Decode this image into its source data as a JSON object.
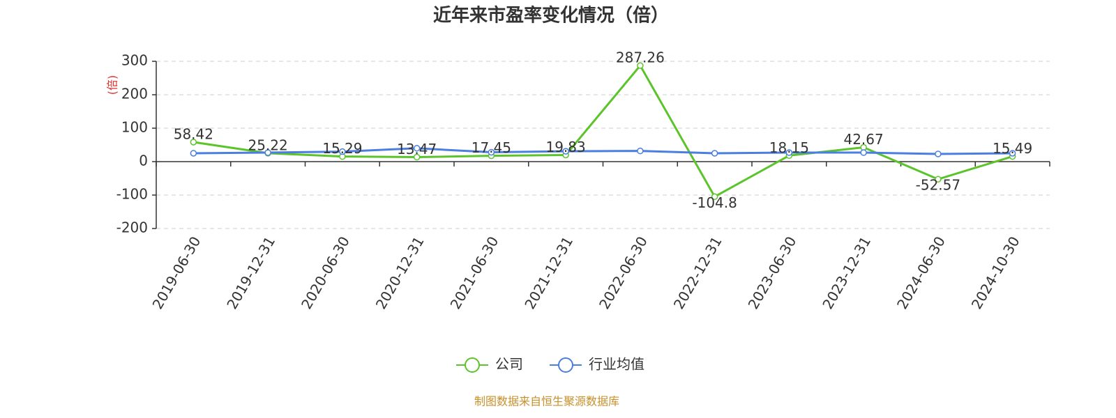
{
  "chart_data": {
    "type": "line",
    "title": "近年来市盈率变化情况（倍）",
    "y_label": "(倍)",
    "source": "制图数据来自恒生聚源数据库",
    "categories": [
      "2019-06-30",
      "2019-12-31",
      "2020-06-30",
      "2020-12-31",
      "2021-06-30",
      "2021-12-31",
      "2022-06-30",
      "2022-12-31",
      "2023-06-30",
      "2023-12-31",
      "2024-06-30",
      "2024-10-30"
    ],
    "series": [
      {
        "name": "公司",
        "color": "#5cc42b",
        "values": [
          58.42,
          25.22,
          15.29,
          13.47,
          17.45,
          19.83,
          287.26,
          -104.8,
          18.15,
          42.67,
          -52.57,
          15.49
        ]
      },
      {
        "name": "行业均值",
        "color": "#4a7ee0",
        "values": [
          25,
          27,
          30,
          40,
          28,
          31,
          32,
          25,
          27,
          27,
          23,
          25
        ]
      }
    ],
    "ylim": [
      -200,
      300
    ],
    "yticks": [
      -200,
      -100,
      0,
      100,
      200,
      300
    ],
    "grid": true
  }
}
